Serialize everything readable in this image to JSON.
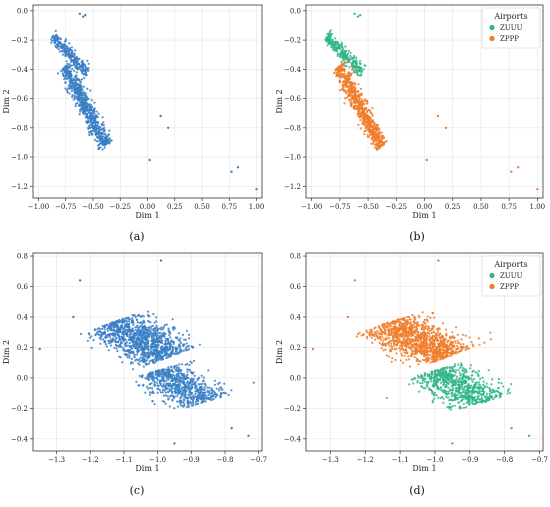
{
  "figure": {
    "panel_colors": {
      "single": "#3a7fc4",
      "ZUUU": "#2fb58a",
      "ZPPP": "#f07d2a"
    },
    "legend": {
      "title": "Airports",
      "entries": [
        "ZUUU",
        "ZPPP"
      ]
    }
  },
  "chart_data": [
    {
      "panel": "a",
      "caption": "(a)",
      "type": "scatter",
      "xlabel": "Dim 1",
      "ylabel": "Dim 2",
      "xlim": [
        -1.05,
        1.05
      ],
      "ylim": [
        -1.28,
        0.04
      ],
      "xticks": [
        -1.0,
        -0.75,
        -0.5,
        -0.25,
        0.0,
        0.25,
        0.5,
        0.75,
        1.0
      ],
      "xticklabels": [
        "−1.00",
        "−0.75",
        "−0.50",
        "−0.25",
        "0.00",
        "0.25",
        "0.50",
        "0.75",
        "1.00"
      ],
      "yticks": [
        0.0,
        -0.2,
        -0.4,
        -0.6,
        -0.8,
        -1.0,
        -1.2
      ],
      "yticklabels": [
        "0.0",
        "−0.2",
        "−0.4",
        "−0.6",
        "−0.8",
        "−1.0",
        "−1.2"
      ],
      "grid": true,
      "legend": null,
      "series": [
        {
          "color": "#3a7fc4",
          "clusters": [
            {
              "count": 260,
              "start": [
                -0.87,
                -0.17
              ],
              "end": [
                -0.55,
                -0.43
              ],
              "width": 0.045
            },
            {
              "count": 700,
              "start": [
                -0.76,
                -0.38
              ],
              "end": [
                -0.38,
                -0.93
              ],
              "width": 0.06
            }
          ],
          "points": [
            [
              -0.62,
              -0.02
            ],
            [
              -0.57,
              -0.03
            ],
            [
              -0.59,
              -0.04
            ],
            [
              0.12,
              -0.72
            ],
            [
              0.19,
              -0.8
            ],
            [
              0.02,
              -1.02
            ],
            [
              0.83,
              -1.07
            ],
            [
              0.77,
              -1.1
            ],
            [
              1.0,
              -1.22
            ]
          ]
        }
      ]
    },
    {
      "panel": "b",
      "caption": "(b)",
      "type": "scatter",
      "xlabel": "Dim 1",
      "ylabel": "Dim 2",
      "xlim": [
        -1.05,
        1.05
      ],
      "ylim": [
        -1.28,
        0.04
      ],
      "xticks": [
        -1.0,
        -0.75,
        -0.5,
        -0.25,
        0.0,
        0.25,
        0.5,
        0.75,
        1.0
      ],
      "xticklabels": [
        "−1.00",
        "−0.75",
        "−0.50",
        "−0.25",
        "0.00",
        "0.25",
        "0.50",
        "0.75",
        "1.00"
      ],
      "yticks": [
        0.0,
        -0.2,
        -0.4,
        -0.6,
        -0.8,
        -1.0,
        -1.2
      ],
      "yticklabels": [
        "0.0",
        "−0.2",
        "−0.4",
        "−0.6",
        "−0.8",
        "−1.0",
        "−1.2"
      ],
      "grid": true,
      "legend": "top-right",
      "series": [
        {
          "name": "ZUUU",
          "color": "#2fb58a",
          "clusters": [
            {
              "count": 260,
              "start": [
                -0.87,
                -0.17
              ],
              "end": [
                -0.55,
                -0.43
              ],
              "width": 0.045
            }
          ],
          "points": [
            [
              -0.62,
              -0.02
            ],
            [
              -0.57,
              -0.03
            ],
            [
              -0.59,
              -0.04
            ]
          ]
        },
        {
          "name": "ZPPP",
          "color": "#f07d2a",
          "clusters": [
            {
              "count": 700,
              "start": [
                -0.76,
                -0.38
              ],
              "end": [
                -0.38,
                -0.93
              ],
              "width": 0.06
            }
          ],
          "points": [
            [
              0.12,
              -0.72
            ],
            [
              0.19,
              -0.8
            ],
            [
              0.02,
              -1.02
            ],
            [
              0.83,
              -1.07
            ],
            [
              0.77,
              -1.1
            ],
            [
              1.0,
              -1.22
            ]
          ]
        }
      ]
    },
    {
      "panel": "c",
      "caption": "(c)",
      "type": "scatter",
      "xlabel": "Dim 1",
      "ylabel": "Dim 2",
      "xlim": [
        -1.37,
        -0.69
      ],
      "ylim": [
        -0.48,
        0.82
      ],
      "xticks": [
        -1.3,
        -1.2,
        -1.1,
        -1.0,
        -0.9,
        -0.8,
        -0.7
      ],
      "xticklabels": [
        "−1.3",
        "−1.2",
        "−1.1",
        "−1.0",
        "−0.9",
        "−0.8",
        "−0.7"
      ],
      "yticks": [
        0.8,
        0.6,
        0.4,
        0.2,
        0.0,
        -0.2,
        -0.4
      ],
      "yticklabels": [
        "0.8",
        "0.6",
        "0.4",
        "0.2",
        "0.0",
        "−0.2",
        "−0.4"
      ],
      "grid": true,
      "legend": null,
      "series": [
        {
          "color": "#3a7fc4",
          "clusters": [
            {
              "count": 1100,
              "start": [
                -1.14,
                0.36
              ],
              "end": [
                -0.96,
                0.14
              ],
              "width": 0.1
            },
            {
              "count": 700,
              "start": [
                -1.0,
                0.05
              ],
              "end": [
                -0.86,
                -0.16
              ],
              "width": 0.09
            }
          ],
          "points": [
            [
              -1.35,
              0.19
            ],
            [
              -1.25,
              0.4
            ],
            [
              -1.23,
              0.64
            ],
            [
              -0.99,
              0.77
            ],
            [
              -0.78,
              -0.33
            ],
            [
              -0.73,
              -0.38
            ],
            [
              -0.95,
              -0.43
            ]
          ]
        }
      ]
    },
    {
      "panel": "d",
      "caption": "(d)",
      "type": "scatter",
      "xlabel": "Dim 1",
      "ylabel": "Dim 2",
      "xlim": [
        -1.37,
        -0.69
      ],
      "ylim": [
        -0.48,
        0.82
      ],
      "xticks": [
        -1.3,
        -1.2,
        -1.1,
        -1.0,
        -0.9,
        -0.8,
        -0.7
      ],
      "xticklabels": [
        "−1.3",
        "−1.2",
        "−1.1",
        "−1.0",
        "−0.9",
        "−0.8",
        "−0.7"
      ],
      "yticks": [
        0.8,
        0.6,
        0.4,
        0.2,
        0.0,
        -0.2,
        -0.4
      ],
      "yticklabels": [
        "0.8",
        "0.6",
        "0.4",
        "0.2",
        "0.0",
        "−0.2",
        "−0.4"
      ],
      "grid": true,
      "legend": "top-right",
      "series": [
        {
          "name": "ZUUU",
          "color": "#2fb58a",
          "clusters": [
            {
              "count": 700,
              "start": [
                -1.0,
                0.05
              ],
              "end": [
                -0.86,
                -0.16
              ],
              "width": 0.09
            }
          ],
          "points": [
            [
              -0.78,
              -0.33
            ],
            [
              -0.73,
              -0.38
            ],
            [
              -0.95,
              -0.43
            ]
          ]
        },
        {
          "name": "ZPPP",
          "color": "#f07d2a",
          "clusters": [
            {
              "count": 1100,
              "start": [
                -1.14,
                0.36
              ],
              "end": [
                -0.96,
                0.14
              ],
              "width": 0.1
            }
          ],
          "points": [
            [
              -1.35,
              0.19
            ],
            [
              -1.25,
              0.4
            ],
            [
              -1.23,
              0.64
            ],
            [
              -0.99,
              0.77
            ]
          ]
        }
      ]
    }
  ]
}
